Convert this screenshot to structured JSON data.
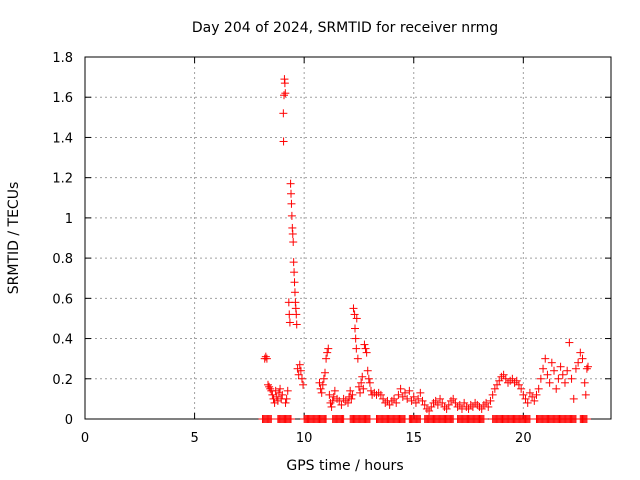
{
  "chart_data": {
    "type": "scatter",
    "title": "Day 204 of 2024, SRMTID for receiver nrmg",
    "xlabel": "GPS time / hours",
    "ylabel": "SRMTID / TECUs",
    "xlim": [
      0,
      24
    ],
    "ylim": [
      0,
      1.8
    ],
    "x_ticks": [
      0,
      5,
      10,
      15,
      20
    ],
    "x_tick_labels": [
      "0",
      "5",
      "10",
      "15",
      "20"
    ],
    "y_ticks": [
      0,
      0.2,
      0.4,
      0.6,
      0.8,
      1.0,
      1.2,
      1.4,
      1.6,
      1.8
    ],
    "y_tick_labels": [
      "0",
      "0.2",
      "0.4",
      "0.6",
      "0.8",
      "1",
      "1.2",
      "1.4",
      "1.6",
      "1.8"
    ],
    "grid": true,
    "marker": "+",
    "marker_color": "#ff0000",
    "series": [
      {
        "name": "SRMTID",
        "points": [
          [
            8.2,
            0.3
          ],
          [
            8.25,
            0.31
          ],
          [
            8.3,
            0.3
          ],
          [
            8.35,
            0.17
          ],
          [
            8.4,
            0.16
          ],
          [
            8.45,
            0.15
          ],
          [
            8.5,
            0.14
          ],
          [
            8.55,
            0.12
          ],
          [
            8.6,
            0.1
          ],
          [
            8.65,
            0.08
          ],
          [
            8.7,
            0.14
          ],
          [
            8.75,
            0.11
          ],
          [
            8.8,
            0.09
          ],
          [
            8.85,
            0.13
          ],
          [
            8.9,
            0.15
          ],
          [
            8.95,
            0.1
          ],
          [
            9.0,
            0.12
          ],
          [
            9.05,
            1.52
          ],
          [
            9.06,
            1.38
          ],
          [
            9.08,
            1.61
          ],
          [
            9.1,
            1.69
          ],
          [
            9.12,
            1.67
          ],
          [
            9.14,
            1.62
          ],
          [
            9.15,
            0.08
          ],
          [
            9.2,
            0.1
          ],
          [
            9.25,
            0.14
          ],
          [
            9.3,
            0.58
          ],
          [
            9.32,
            0.52
          ],
          [
            9.35,
            0.48
          ],
          [
            9.38,
            1.17
          ],
          [
            9.4,
            1.12
          ],
          [
            9.42,
            1.07
          ],
          [
            9.44,
            1.01
          ],
          [
            9.46,
            0.95
          ],
          [
            9.48,
            0.92
          ],
          [
            9.5,
            0.88
          ],
          [
            9.52,
            0.78
          ],
          [
            9.54,
            0.73
          ],
          [
            9.56,
            0.68
          ],
          [
            9.58,
            0.63
          ],
          [
            9.6,
            0.58
          ],
          [
            9.62,
            0.55
          ],
          [
            9.64,
            0.52
          ],
          [
            9.66,
            0.47
          ],
          [
            9.7,
            0.25
          ],
          [
            9.75,
            0.22
          ],
          [
            9.8,
            0.27
          ],
          [
            9.85,
            0.24
          ],
          [
            9.9,
            0.2
          ],
          [
            9.95,
            0.17
          ],
          [
            10.7,
            0.18
          ],
          [
            10.75,
            0.15
          ],
          [
            10.8,
            0.13
          ],
          [
            10.85,
            0.17
          ],
          [
            10.9,
            0.2
          ],
          [
            10.95,
            0.23
          ],
          [
            11.0,
            0.3
          ],
          [
            11.05,
            0.33
          ],
          [
            11.1,
            0.35
          ],
          [
            11.15,
            0.12
          ],
          [
            11.2,
            0.08
          ],
          [
            11.25,
            0.06
          ],
          [
            11.3,
            0.09
          ],
          [
            11.35,
            0.11
          ],
          [
            11.4,
            0.14
          ],
          [
            11.5,
            0.1
          ],
          [
            11.6,
            0.09
          ],
          [
            11.7,
            0.07
          ],
          [
            11.8,
            0.1
          ],
          [
            11.9,
            0.09
          ],
          [
            12.0,
            0.08
          ],
          [
            12.05,
            0.11
          ],
          [
            12.1,
            0.14
          ],
          [
            12.15,
            0.1
          ],
          [
            12.2,
            0.12
          ],
          [
            12.25,
            0.55
          ],
          [
            12.3,
            0.52
          ],
          [
            12.32,
            0.45
          ],
          [
            12.35,
            0.4
          ],
          [
            12.38,
            0.35
          ],
          [
            12.4,
            0.5
          ],
          [
            12.45,
            0.3
          ],
          [
            12.5,
            0.16
          ],
          [
            12.55,
            0.13
          ],
          [
            12.6,
            0.18
          ],
          [
            12.65,
            0.21
          ],
          [
            12.7,
            0.15
          ],
          [
            12.75,
            0.37
          ],
          [
            12.8,
            0.35
          ],
          [
            12.85,
            0.33
          ],
          [
            12.9,
            0.24
          ],
          [
            12.95,
            0.2
          ],
          [
            13.0,
            0.18
          ],
          [
            13.05,
            0.14
          ],
          [
            13.1,
            0.12
          ],
          [
            13.2,
            0.13
          ],
          [
            13.3,
            0.12
          ],
          [
            13.4,
            0.13
          ],
          [
            13.5,
            0.12
          ],
          [
            13.6,
            0.1
          ],
          [
            13.7,
            0.08
          ],
          [
            13.8,
            0.09
          ],
          [
            13.9,
            0.07
          ],
          [
            14.0,
            0.09
          ],
          [
            14.1,
            0.1
          ],
          [
            14.2,
            0.08
          ],
          [
            14.3,
            0.12
          ],
          [
            14.4,
            0.15
          ],
          [
            14.5,
            0.11
          ],
          [
            14.6,
            0.13
          ],
          [
            14.7,
            0.1
          ],
          [
            14.8,
            0.14
          ],
          [
            14.9,
            0.09
          ],
          [
            15.0,
            0.11
          ],
          [
            15.1,
            0.08
          ],
          [
            15.2,
            0.1
          ],
          [
            15.3,
            0.13
          ],
          [
            15.4,
            0.09
          ],
          [
            15.5,
            0.07
          ],
          [
            15.6,
            0.05
          ],
          [
            15.7,
            0.04
          ],
          [
            15.8,
            0.06
          ],
          [
            15.9,
            0.08
          ],
          [
            16.0,
            0.09
          ],
          [
            16.1,
            0.07
          ],
          [
            16.2,
            0.1
          ],
          [
            16.3,
            0.08
          ],
          [
            16.4,
            0.06
          ],
          [
            16.5,
            0.05
          ],
          [
            16.6,
            0.07
          ],
          [
            16.7,
            0.09
          ],
          [
            16.8,
            0.1
          ],
          [
            16.9,
            0.08
          ],
          [
            17.0,
            0.06
          ],
          [
            17.1,
            0.07
          ],
          [
            17.2,
            0.05
          ],
          [
            17.3,
            0.08
          ],
          [
            17.4,
            0.06
          ],
          [
            17.5,
            0.05
          ],
          [
            17.6,
            0.07
          ],
          [
            17.7,
            0.06
          ],
          [
            17.8,
            0.08
          ],
          [
            17.9,
            0.07
          ],
          [
            18.0,
            0.06
          ],
          [
            18.1,
            0.05
          ],
          [
            18.2,
            0.07
          ],
          [
            18.3,
            0.08
          ],
          [
            18.4,
            0.06
          ],
          [
            18.5,
            0.09
          ],
          [
            18.6,
            0.12
          ],
          [
            18.7,
            0.15
          ],
          [
            18.8,
            0.17
          ],
          [
            18.9,
            0.19
          ],
          [
            19.0,
            0.21
          ],
          [
            19.1,
            0.22
          ],
          [
            19.2,
            0.2
          ],
          [
            19.3,
            0.18
          ],
          [
            19.4,
            0.19
          ],
          [
            19.5,
            0.2
          ],
          [
            19.6,
            0.18
          ],
          [
            19.7,
            0.19
          ],
          [
            19.8,
            0.17
          ],
          [
            19.9,
            0.15
          ],
          [
            20.0,
            0.12
          ],
          [
            20.1,
            0.1
          ],
          [
            20.2,
            0.08
          ],
          [
            20.3,
            0.13
          ],
          [
            20.4,
            0.11
          ],
          [
            20.5,
            0.09
          ],
          [
            20.6,
            0.12
          ],
          [
            20.7,
            0.15
          ],
          [
            20.8,
            0.2
          ],
          [
            20.9,
            0.25
          ],
          [
            21.0,
            0.3
          ],
          [
            21.1,
            0.22
          ],
          [
            21.2,
            0.18
          ],
          [
            21.3,
            0.28
          ],
          [
            21.4,
            0.24
          ],
          [
            21.5,
            0.15
          ],
          [
            21.6,
            0.2
          ],
          [
            21.7,
            0.26
          ],
          [
            21.8,
            0.22
          ],
          [
            21.9,
            0.18
          ],
          [
            22.0,
            0.24
          ],
          [
            22.1,
            0.38
          ],
          [
            22.2,
            0.2
          ],
          [
            22.3,
            0.1
          ],
          [
            22.4,
            0.25
          ],
          [
            22.5,
            0.28
          ],
          [
            22.6,
            0.33
          ],
          [
            22.7,
            0.3
          ],
          [
            22.8,
            0.18
          ],
          [
            22.85,
            0.12
          ],
          [
            22.9,
            0.25
          ],
          [
            22.95,
            0.26
          ]
        ]
      }
    ],
    "zero_ranges": [
      [
        8.1,
        8.5
      ],
      [
        8.8,
        9.4
      ],
      [
        10.0,
        11.0
      ],
      [
        11.3,
        11.8
      ],
      [
        12.1,
        13.0
      ],
      [
        13.3,
        14.6
      ],
      [
        14.8,
        15.3
      ],
      [
        15.5,
        16.8
      ],
      [
        17.0,
        18.2
      ],
      [
        18.6,
        20.3
      ],
      [
        20.6,
        22.4
      ],
      [
        22.6,
        22.9
      ]
    ]
  }
}
